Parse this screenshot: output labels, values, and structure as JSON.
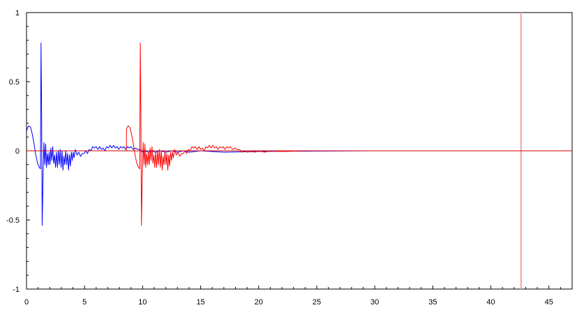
{
  "chart_data": {
    "type": "line",
    "title": "",
    "xlabel": "",
    "ylabel": "",
    "xlim": [
      0,
      47
    ],
    "ylim": [
      -1,
      1
    ],
    "x_ticks": [
      0,
      5,
      10,
      15,
      20,
      25,
      30,
      35,
      40,
      45
    ],
    "y_ticks": [
      1,
      0.5,
      0,
      -0.5,
      -1
    ],
    "y_tick_labels": [
      "1",
      "0.5",
      "0",
      "-0.5",
      "-1"
    ],
    "grid": false,
    "zero_line": {
      "y": 0,
      "color": "#d40000"
    },
    "marker_line": {
      "x": 42.6,
      "color": "#f4a0a0"
    },
    "series": [
      {
        "color": "#0000ff",
        "points": [
          [
            0.0,
            0.14
          ],
          [
            0.1,
            0.17
          ],
          [
            0.2,
            0.18
          ],
          [
            0.35,
            0.17
          ],
          [
            0.5,
            0.12
          ],
          [
            0.65,
            0.05
          ],
          [
            0.8,
            -0.03
          ],
          [
            0.95,
            -0.09
          ],
          [
            1.1,
            -0.12
          ],
          [
            1.2,
            -0.13
          ],
          [
            1.25,
            0.78
          ],
          [
            1.3,
            0.3
          ],
          [
            1.35,
            -0.54
          ],
          [
            1.42,
            -0.2
          ],
          [
            1.5,
            0.06
          ],
          [
            1.58,
            -0.1
          ],
          [
            1.65,
            0.05
          ],
          [
            1.72,
            -0.12
          ],
          [
            1.8,
            -0.02
          ],
          [
            1.88,
            -0.1
          ],
          [
            1.95,
            -0.01
          ],
          [
            2.02,
            -0.1
          ],
          [
            2.1,
            0.02
          ],
          [
            2.18,
            -0.07
          ],
          [
            2.26,
            0.03
          ],
          [
            2.34,
            -0.09
          ],
          [
            2.42,
            -0.03
          ],
          [
            2.5,
            -0.12
          ],
          [
            2.58,
            -0.01
          ],
          [
            2.66,
            -0.12
          ],
          [
            2.74,
            0.0
          ],
          [
            2.82,
            -0.1
          ],
          [
            2.9,
            0.01
          ],
          [
            2.98,
            -0.12
          ],
          [
            3.06,
            0.0
          ],
          [
            3.14,
            -0.14
          ],
          [
            3.22,
            -0.04
          ],
          [
            3.3,
            -0.1
          ],
          [
            3.38,
            0.0
          ],
          [
            3.46,
            -0.1
          ],
          [
            3.54,
            -0.02
          ],
          [
            3.62,
            -0.14
          ],
          [
            3.7,
            -0.03
          ],
          [
            3.78,
            -0.11
          ],
          [
            3.86,
            -0.01
          ],
          [
            3.94,
            -0.07
          ],
          [
            4.02,
            -0.01
          ],
          [
            4.1,
            -0.05
          ],
          [
            4.2,
            0.01
          ],
          [
            4.35,
            -0.03
          ],
          [
            4.5,
            -0.01
          ],
          [
            4.65,
            -0.04
          ],
          [
            4.8,
            -0.02
          ],
          [
            4.95,
            -0.02
          ],
          [
            5.1,
            0.0
          ],
          [
            5.25,
            -0.02
          ],
          [
            5.4,
            0.01
          ],
          [
            5.55,
            0.0
          ],
          [
            5.7,
            0.03
          ],
          [
            5.85,
            0.02
          ],
          [
            6.0,
            0.03
          ],
          [
            6.15,
            0.01
          ],
          [
            6.3,
            0.03
          ],
          [
            6.45,
            0.01
          ],
          [
            6.6,
            0.02
          ],
          [
            6.75,
            0.0
          ],
          [
            6.9,
            0.03
          ],
          [
            7.05,
            0.02
          ],
          [
            7.2,
            0.04
          ],
          [
            7.35,
            0.02
          ],
          [
            7.5,
            0.04
          ],
          [
            7.65,
            0.02
          ],
          [
            7.8,
            0.03
          ],
          [
            7.95,
            0.01
          ],
          [
            8.1,
            0.03
          ],
          [
            8.25,
            0.02
          ],
          [
            8.4,
            0.03
          ],
          [
            8.55,
            0.01
          ],
          [
            8.7,
            0.03
          ],
          [
            8.85,
            0.02
          ],
          [
            9.0,
            0.03
          ],
          [
            9.2,
            0.01
          ],
          [
            9.4,
            0.02
          ],
          [
            9.6,
            0.01
          ],
          [
            9.8,
            0.01
          ],
          [
            10.0,
            -0.01
          ],
          [
            10.2,
            0.0
          ],
          [
            10.5,
            -0.01
          ],
          [
            10.8,
            0.0
          ],
          [
            11.1,
            -0.01
          ],
          [
            11.5,
            0.0
          ],
          [
            12.0,
            -0.01
          ],
          [
            12.5,
            0.0
          ],
          [
            13.0,
            -0.01
          ],
          [
            13.5,
            0.0
          ],
          [
            14.0,
            -0.01
          ],
          [
            15.0,
            0.0
          ],
          [
            17.0,
            -0.01
          ],
          [
            20.0,
            -0.005
          ],
          [
            25.0,
            -0.002
          ],
          [
            30.0,
            0.0
          ],
          [
            47.0,
            0.0
          ]
        ]
      },
      {
        "color": "#ff0000",
        "points": [
          [
            8.6,
            0.0
          ],
          [
            8.62,
            0.16
          ],
          [
            8.75,
            0.18
          ],
          [
            8.9,
            0.17
          ],
          [
            9.05,
            0.12
          ],
          [
            9.2,
            0.05
          ],
          [
            9.35,
            -0.03
          ],
          [
            9.5,
            -0.09
          ],
          [
            9.65,
            -0.12
          ],
          [
            9.75,
            -0.13
          ],
          [
            9.8,
            0.78
          ],
          [
            9.85,
            0.3
          ],
          [
            9.9,
            -0.54
          ],
          [
            9.97,
            -0.2
          ],
          [
            10.05,
            0.06
          ],
          [
            10.13,
            -0.1
          ],
          [
            10.2,
            0.05
          ],
          [
            10.27,
            -0.12
          ],
          [
            10.35,
            -0.02
          ],
          [
            10.43,
            -0.1
          ],
          [
            10.5,
            -0.01
          ],
          [
            10.57,
            -0.1
          ],
          [
            10.65,
            0.02
          ],
          [
            10.73,
            -0.07
          ],
          [
            10.81,
            0.03
          ],
          [
            10.89,
            -0.09
          ],
          [
            10.97,
            -0.03
          ],
          [
            11.05,
            -0.12
          ],
          [
            11.13,
            -0.01
          ],
          [
            11.21,
            -0.12
          ],
          [
            11.29,
            0.0
          ],
          [
            11.37,
            -0.1
          ],
          [
            11.45,
            0.01
          ],
          [
            11.53,
            -0.12
          ],
          [
            11.61,
            0.0
          ],
          [
            11.69,
            -0.14
          ],
          [
            11.77,
            -0.04
          ],
          [
            11.85,
            -0.1
          ],
          [
            11.93,
            0.0
          ],
          [
            12.01,
            -0.1
          ],
          [
            12.09,
            -0.02
          ],
          [
            12.17,
            -0.14
          ],
          [
            12.25,
            -0.03
          ],
          [
            12.33,
            -0.11
          ],
          [
            12.41,
            -0.01
          ],
          [
            12.49,
            -0.07
          ],
          [
            12.57,
            -0.01
          ],
          [
            12.65,
            -0.05
          ],
          [
            12.75,
            0.01
          ],
          [
            12.9,
            -0.03
          ],
          [
            13.05,
            -0.01
          ],
          [
            13.2,
            -0.04
          ],
          [
            13.35,
            -0.02
          ],
          [
            13.5,
            -0.02
          ],
          [
            13.65,
            0.0
          ],
          [
            13.8,
            -0.02
          ],
          [
            13.95,
            0.01
          ],
          [
            14.1,
            0.0
          ],
          [
            14.25,
            0.03
          ],
          [
            14.4,
            0.02
          ],
          [
            14.55,
            0.03
          ],
          [
            14.7,
            0.01
          ],
          [
            14.85,
            0.03
          ],
          [
            15.0,
            0.01
          ],
          [
            15.15,
            0.02
          ],
          [
            15.3,
            0.0
          ],
          [
            15.45,
            0.03
          ],
          [
            15.6,
            0.02
          ],
          [
            15.75,
            0.04
          ],
          [
            15.9,
            0.02
          ],
          [
            16.05,
            0.04
          ],
          [
            16.2,
            0.02
          ],
          [
            16.35,
            0.03
          ],
          [
            16.5,
            0.01
          ],
          [
            16.65,
            0.03
          ],
          [
            16.8,
            0.02
          ],
          [
            16.95,
            0.03
          ],
          [
            17.1,
            0.01
          ],
          [
            17.25,
            0.03
          ],
          [
            17.4,
            0.02
          ],
          [
            17.55,
            0.03
          ],
          [
            17.75,
            0.01
          ],
          [
            17.95,
            0.02
          ],
          [
            18.15,
            0.01
          ],
          [
            18.35,
            0.01
          ],
          [
            18.55,
            -0.01
          ],
          [
            18.75,
            0.0
          ],
          [
            19.05,
            -0.01
          ],
          [
            19.35,
            0.0
          ],
          [
            19.65,
            -0.01
          ],
          [
            20.05,
            0.0
          ],
          [
            20.5,
            -0.01
          ],
          [
            21.0,
            0.0
          ],
          [
            22.0,
            -0.005
          ],
          [
            24.0,
            0.0
          ],
          [
            47.0,
            0.0
          ]
        ]
      }
    ]
  }
}
